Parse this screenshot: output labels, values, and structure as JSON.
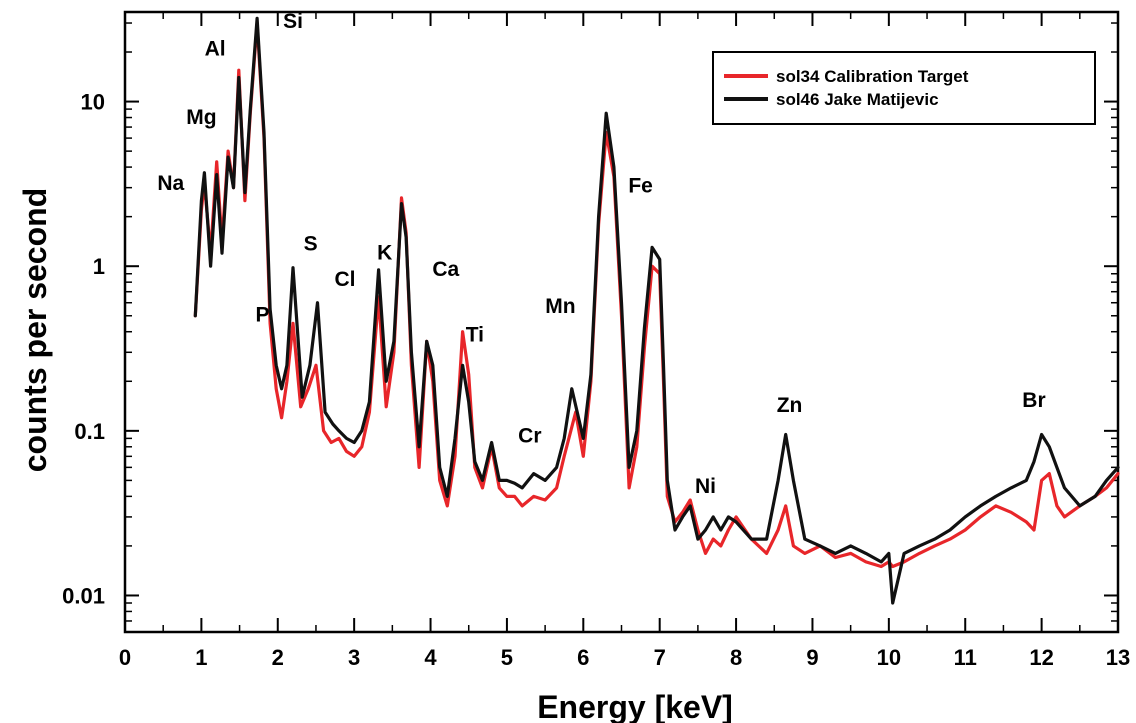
{
  "chart_data": {
    "type": "line",
    "title": "",
    "xlabel": "Energy [keV]",
    "ylabel": "counts per second",
    "xlim": [
      0,
      13
    ],
    "ylim": [
      0.006,
      35
    ],
    "yscale": "log",
    "grid": false,
    "legend_position": "top-right",
    "x_ticks": [
      0,
      1,
      2,
      3,
      4,
      5,
      6,
      7,
      8,
      9,
      10,
      11,
      12,
      13
    ],
    "x_tick_labels": [
      "0",
      "1",
      "2",
      "3",
      "4",
      "5",
      "6",
      "7",
      "8",
      "9",
      "10",
      "11",
      "12",
      "13"
    ],
    "y_ticks": [
      0.01,
      0.1,
      1,
      10
    ],
    "y_tick_labels": [
      "0.01",
      "0.1",
      "1",
      "10"
    ],
    "series": [
      {
        "name": "sol34 Calibration Target",
        "color": "#e8262a",
        "x": [
          0.92,
          1.0,
          1.04,
          1.12,
          1.2,
          1.27,
          1.35,
          1.42,
          1.49,
          1.57,
          1.64,
          1.73,
          1.82,
          1.9,
          1.98,
          2.05,
          2.12,
          2.2,
          2.3,
          2.4,
          2.5,
          2.6,
          2.7,
          2.8,
          2.9,
          3.0,
          3.1,
          3.2,
          3.32,
          3.42,
          3.52,
          3.62,
          3.68,
          3.75,
          3.85,
          3.95,
          4.03,
          4.12,
          4.22,
          4.32,
          4.42,
          4.5,
          4.58,
          4.68,
          4.8,
          4.9,
          5.0,
          5.1,
          5.2,
          5.35,
          5.5,
          5.65,
          5.75,
          5.9,
          6.0,
          6.1,
          6.2,
          6.3,
          6.4,
          6.5,
          6.6,
          6.7,
          6.8,
          6.9,
          7.0,
          7.05,
          7.1,
          7.2,
          7.3,
          7.4,
          7.5,
          7.6,
          7.7,
          7.8,
          7.9,
          8.0,
          8.2,
          8.4,
          8.55,
          8.65,
          8.75,
          8.9,
          9.1,
          9.3,
          9.5,
          9.7,
          9.9,
          10.0,
          10.05,
          10.2,
          10.4,
          10.6,
          10.8,
          11.0,
          11.2,
          11.4,
          11.6,
          11.8,
          11.9,
          12.0,
          12.1,
          12.2,
          12.3,
          12.5,
          12.7,
          12.85,
          13.0
        ],
        "values": [
          0.5,
          2.2,
          3.2,
          1.2,
          4.3,
          1.4,
          5.0,
          3.0,
          15.5,
          2.5,
          8.5,
          30.0,
          6.0,
          0.45,
          0.18,
          0.12,
          0.2,
          0.45,
          0.14,
          0.18,
          0.25,
          0.1,
          0.085,
          0.09,
          0.075,
          0.07,
          0.08,
          0.13,
          0.65,
          0.14,
          0.3,
          2.6,
          1.6,
          0.25,
          0.06,
          0.35,
          0.2,
          0.05,
          0.035,
          0.07,
          0.4,
          0.22,
          0.06,
          0.045,
          0.08,
          0.045,
          0.04,
          0.04,
          0.035,
          0.04,
          0.038,
          0.045,
          0.07,
          0.13,
          0.07,
          0.2,
          1.8,
          6.5,
          3.5,
          0.5,
          0.045,
          0.08,
          0.32,
          1.0,
          0.9,
          0.2,
          0.04,
          0.028,
          0.032,
          0.038,
          0.025,
          0.018,
          0.022,
          0.02,
          0.025,
          0.03,
          0.022,
          0.018,
          0.025,
          0.035,
          0.02,
          0.018,
          0.02,
          0.017,
          0.018,
          0.016,
          0.015,
          0.016,
          0.015,
          0.016,
          0.018,
          0.02,
          0.022,
          0.025,
          0.03,
          0.035,
          0.032,
          0.028,
          0.025,
          0.05,
          0.055,
          0.035,
          0.03,
          0.035,
          0.04,
          0.045,
          0.055
        ]
      },
      {
        "name": "sol46 Jake Matijevic",
        "color": "#111111",
        "x": [
          0.92,
          1.0,
          1.04,
          1.12,
          1.2,
          1.27,
          1.35,
          1.42,
          1.49,
          1.57,
          1.64,
          1.73,
          1.82,
          1.9,
          1.98,
          2.05,
          2.12,
          2.2,
          2.32,
          2.42,
          2.52,
          2.62,
          2.72,
          2.8,
          2.9,
          3.0,
          3.1,
          3.2,
          3.32,
          3.42,
          3.52,
          3.62,
          3.68,
          3.75,
          3.85,
          3.95,
          4.03,
          4.12,
          4.22,
          4.32,
          4.42,
          4.5,
          4.58,
          4.68,
          4.8,
          4.9,
          5.0,
          5.1,
          5.2,
          5.35,
          5.5,
          5.65,
          5.75,
          5.85,
          6.0,
          6.1,
          6.2,
          6.3,
          6.4,
          6.5,
          6.6,
          6.7,
          6.8,
          6.9,
          7.0,
          7.05,
          7.1,
          7.2,
          7.3,
          7.4,
          7.5,
          7.6,
          7.7,
          7.8,
          7.9,
          8.0,
          8.2,
          8.4,
          8.55,
          8.65,
          8.75,
          8.9,
          9.1,
          9.3,
          9.5,
          9.7,
          9.9,
          10.0,
          10.05,
          10.2,
          10.4,
          10.6,
          10.8,
          11.0,
          11.2,
          11.4,
          11.6,
          11.8,
          11.9,
          12.0,
          12.1,
          12.2,
          12.3,
          12.5,
          12.7,
          12.85,
          13.0
        ],
        "values": [
          0.5,
          2.5,
          3.7,
          1.0,
          3.6,
          1.2,
          4.6,
          3.0,
          14.0,
          2.8,
          9.0,
          32.0,
          6.5,
          0.55,
          0.25,
          0.18,
          0.25,
          0.98,
          0.16,
          0.25,
          0.6,
          0.13,
          0.11,
          0.1,
          0.09,
          0.085,
          0.1,
          0.15,
          0.95,
          0.2,
          0.35,
          2.4,
          1.5,
          0.3,
          0.08,
          0.35,
          0.25,
          0.06,
          0.04,
          0.09,
          0.25,
          0.15,
          0.065,
          0.05,
          0.085,
          0.05,
          0.05,
          0.048,
          0.045,
          0.055,
          0.05,
          0.06,
          0.09,
          0.18,
          0.09,
          0.22,
          2.0,
          8.5,
          4.0,
          0.6,
          0.06,
          0.1,
          0.42,
          1.3,
          1.1,
          0.25,
          0.05,
          0.025,
          0.03,
          0.035,
          0.022,
          0.025,
          0.03,
          0.025,
          0.03,
          0.028,
          0.022,
          0.022,
          0.05,
          0.095,
          0.05,
          0.022,
          0.02,
          0.018,
          0.02,
          0.018,
          0.016,
          0.018,
          0.009,
          0.018,
          0.02,
          0.022,
          0.025,
          0.03,
          0.035,
          0.04,
          0.045,
          0.05,
          0.065,
          0.095,
          0.08,
          0.06,
          0.045,
          0.035,
          0.04,
          0.05,
          0.06
        ]
      }
    ],
    "annotations": [
      {
        "label": "Na",
        "x": 0.6,
        "y": 2.9
      },
      {
        "label": "Mg",
        "x": 1.0,
        "y": 7.3
      },
      {
        "label": "Al",
        "x": 1.18,
        "y": 19.0
      },
      {
        "label": "Si",
        "x": 2.2,
        "y": 28.0
      },
      {
        "label": "P",
        "x": 1.8,
        "y": 0.46
      },
      {
        "label": "S",
        "x": 2.43,
        "y": 1.25
      },
      {
        "label": "Cl",
        "x": 2.88,
        "y": 0.76
      },
      {
        "label": "K",
        "x": 3.4,
        "y": 1.1
      },
      {
        "label": "Ca",
        "x": 4.2,
        "y": 0.87
      },
      {
        "label": "Ti",
        "x": 4.58,
        "y": 0.35
      },
      {
        "label": "Mn",
        "x": 5.7,
        "y": 0.52
      },
      {
        "label": "Cr",
        "x": 5.3,
        "y": 0.085
      },
      {
        "label": "Fe",
        "x": 6.75,
        "y": 2.8
      },
      {
        "label": "Ni",
        "x": 7.6,
        "y": 0.042
      },
      {
        "label": "Zn",
        "x": 8.7,
        "y": 0.13
      },
      {
        "label": "Br",
        "x": 11.9,
        "y": 0.14
      }
    ]
  }
}
